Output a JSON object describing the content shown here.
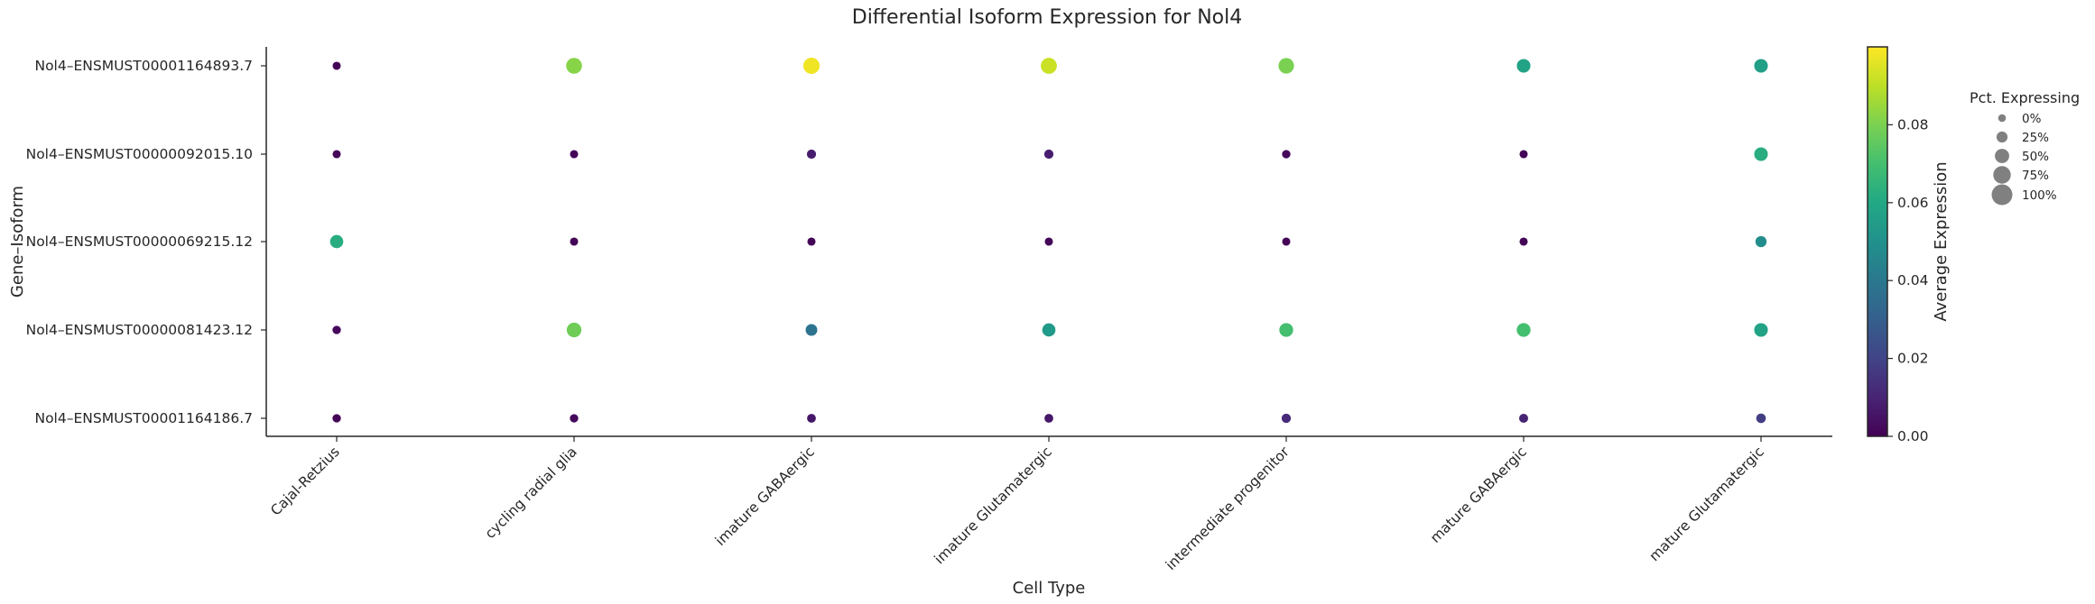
{
  "chart_data": {
    "type": "scatter",
    "title": "Differential Isoform Expression for Nol4",
    "xlabel": "Cell Type",
    "ylabel": "Gene–Isoform",
    "x_categories": [
      "Cajal-Retzius",
      "cycling radial glia",
      "imature GABAergic",
      "imature Glutamatergic",
      "intermediate progenitor",
      "mature GABAergic",
      "mature Glutamatergic"
    ],
    "y_categories": [
      "Nol4–ENSMUST00001164893.7",
      "Nol4–ENSMUST00000092015.10",
      "Nol4–ENSMUST00000069215.12",
      "Nol4–ENSMUST00000081423.12",
      "Nol4–ENSMUST00001164186.7"
    ],
    "avg_expression": [
      [
        0.001,
        0.082,
        0.098,
        0.092,
        0.08,
        0.058,
        0.056
      ],
      [
        0.001,
        0.001,
        0.008,
        0.008,
        0.002,
        0.001,
        0.062
      ],
      [
        0.062,
        0.001,
        0.001,
        0.001,
        0.001,
        0.001,
        0.048
      ],
      [
        0.002,
        0.078,
        0.038,
        0.054,
        0.07,
        0.07,
        0.058
      ],
      [
        0.001,
        0.002,
        0.006,
        0.006,
        0.012,
        0.01,
        0.018
      ]
    ],
    "pct_expressing": [
      [
        3,
        62,
        66,
        64,
        60,
        45,
        45
      ],
      [
        3,
        3,
        11,
        11,
        5,
        3,
        45
      ],
      [
        42,
        3,
        3,
        3,
        3,
        3,
        26
      ],
      [
        5,
        53,
        30,
        42,
        47,
        47,
        45
      ],
      [
        5,
        5,
        8,
        8,
        12,
        10,
        14
      ]
    ],
    "colorbar": {
      "label": "Average Expression",
      "colormap": "viridis",
      "range": [
        0,
        0.1
      ],
      "ticks": [
        "0.00",
        "0.02",
        "0.04",
        "0.06",
        "0.08"
      ]
    },
    "size_legend": {
      "title": "Pct. Expressing",
      "labels": [
        "0%",
        "25%",
        "50%",
        "75%",
        "100%"
      ]
    },
    "grid": false,
    "legend_position": "right"
  }
}
